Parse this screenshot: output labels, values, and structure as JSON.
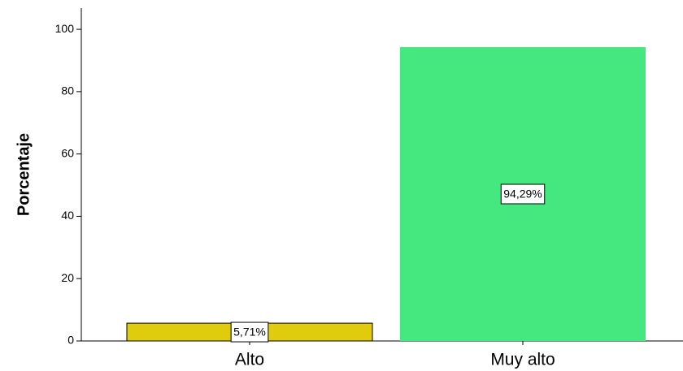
{
  "chart_data": {
    "type": "bar",
    "y_label": "Porcentaje",
    "categories": [
      "Alto",
      "Muy alto"
    ],
    "values": [
      5.71,
      94.29
    ],
    "value_labels": [
      "5,71%",
      "94,29%"
    ],
    "colors": [
      "#e0cb0c",
      "#44e87f"
    ],
    "ylim": [
      0,
      106.8
    ],
    "yticks": [
      0,
      20,
      40,
      60,
      80,
      100
    ],
    "grid": false
  }
}
